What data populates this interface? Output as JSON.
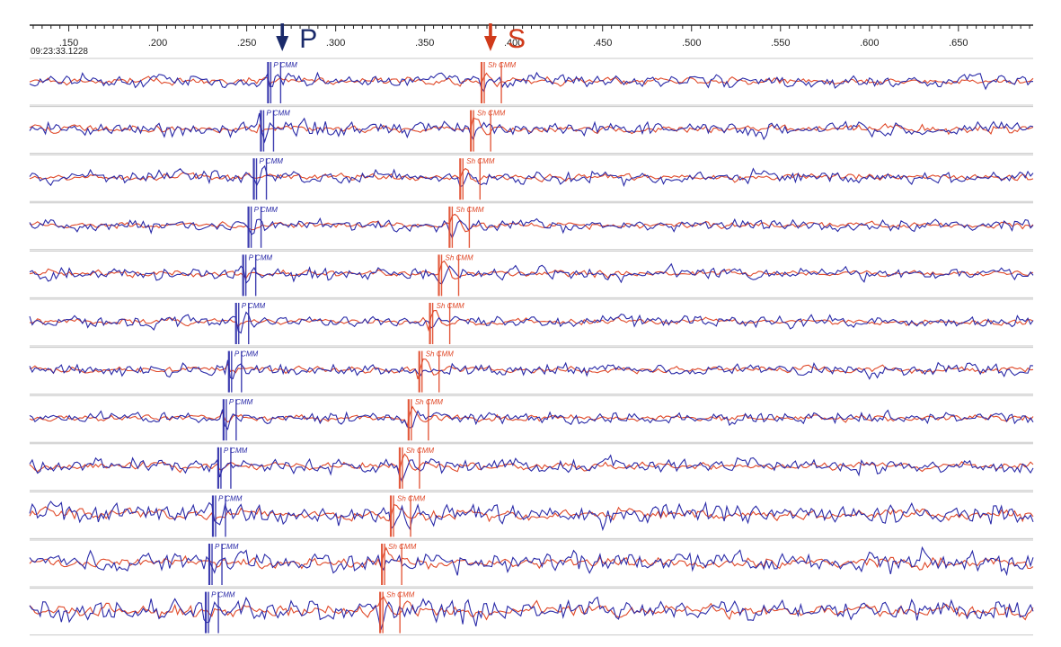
{
  "chart_data": {
    "type": "line",
    "title": "",
    "start_time": "09:23:33.1228",
    "x_range": [
      0.128,
      0.692
    ],
    "x_ticks": [
      ".150",
      ".200",
      ".250",
      ".300",
      ".350",
      ".400",
      ".450",
      ".500",
      ".550",
      ".600",
      ".650"
    ],
    "x_tick_values": [
      0.15,
      0.2,
      0.25,
      0.3,
      0.35,
      0.4,
      0.45,
      0.5,
      0.55,
      0.6,
      0.65
    ],
    "grid": false,
    "legend": "none",
    "series": [
      {
        "name": "",
        "color": "#2a2aa8"
      },
      {
        "name": "",
        "color": "#e04a2a"
      }
    ],
    "arrivals": {
      "p_label": "P",
      "s_label": "S",
      "p_arrow_time": 0.27,
      "s_arrow_time": 0.387,
      "p_color": "#1a2a6a",
      "s_color": "#d03a1a"
    },
    "traces": [
      {
        "p_pick": 0.262,
        "p_label": "P CMM",
        "s_pick": 0.382,
        "s_label": "Sh CMM",
        "noise": 0.35
      },
      {
        "p_pick": 0.258,
        "p_label": "P CMM",
        "s_pick": 0.376,
        "s_label": "Sh CMM",
        "noise": 0.45
      },
      {
        "p_pick": 0.254,
        "p_label": "P CMM",
        "s_pick": 0.37,
        "s_label": "Sh CMM",
        "noise": 0.35
      },
      {
        "p_pick": 0.251,
        "p_label": "P CMM",
        "s_pick": 0.364,
        "s_label": "Sh CMM",
        "noise": 0.3
      },
      {
        "p_pick": 0.248,
        "p_label": "P CMM",
        "s_pick": 0.358,
        "s_label": "Sh CMM",
        "noise": 0.3
      },
      {
        "p_pick": 0.244,
        "p_label": "P CMM",
        "s_pick": 0.353,
        "s_label": "Sh CMM",
        "noise": 0.28
      },
      {
        "p_pick": 0.24,
        "p_label": "P CMM",
        "s_pick": 0.347,
        "s_label": "Sh CMM",
        "noise": 0.3
      },
      {
        "p_pick": 0.237,
        "p_label": "P CMM",
        "s_pick": 0.341,
        "s_label": "Sh CMM",
        "noise": 0.3
      },
      {
        "p_pick": 0.234,
        "p_label": "P CMM",
        "s_pick": 0.336,
        "s_label": "Sh CMM",
        "noise": 0.45
      },
      {
        "p_pick": 0.231,
        "p_label": "P CMM",
        "s_pick": 0.331,
        "s_label": "Sh CMM",
        "noise": 0.75
      },
      {
        "p_pick": 0.229,
        "p_label": "P CMM",
        "s_pick": 0.326,
        "s_label": "Sh CMM",
        "noise": 0.75
      },
      {
        "p_pick": 0.227,
        "p_label": "P CMM",
        "s_pick": 0.325,
        "s_label": "Sh CMM",
        "noise": 0.85
      }
    ]
  }
}
